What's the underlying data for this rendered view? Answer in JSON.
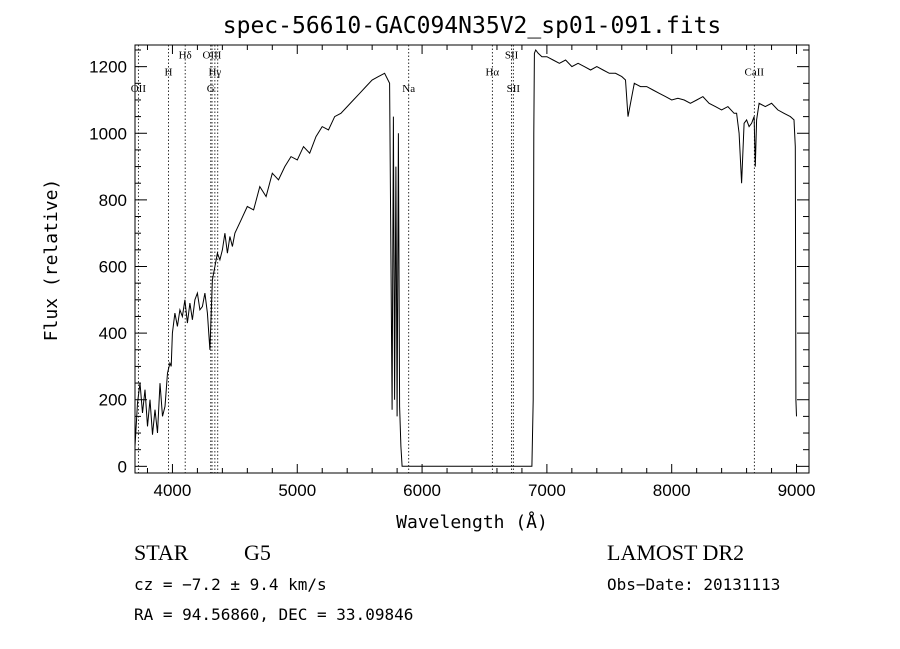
{
  "chart_data": {
    "type": "line",
    "title": "spec-56610-GAC094N35V2_sp01-091.fits",
    "xlabel": "Wavelength (Å)",
    "ylabel": "Flux (relative)",
    "xlim": [
      3700,
      9100
    ],
    "ylim": [
      -20,
      1265
    ],
    "x_ticks": [
      4000,
      5000,
      6000,
      7000,
      8000,
      9000
    ],
    "x_tick_labels": [
      "4000",
      "5000",
      "6000",
      "7000",
      "8000",
      "9000"
    ],
    "y_ticks": [
      0,
      200,
      400,
      600,
      800,
      1000,
      1200
    ],
    "y_tick_labels": [
      "0",
      "200",
      "400",
      "600",
      "800",
      "1000",
      "1200"
    ],
    "series": [
      {
        "x": [
          3700,
          3720,
          3740,
          3760,
          3780,
          3800,
          3820,
          3840,
          3860,
          3880,
          3900,
          3920,
          3940,
          3960,
          3980,
          3990,
          4000,
          4020,
          4040,
          4060,
          4080,
          4100,
          4120,
          4140,
          4160,
          4180,
          4200,
          4220,
          4240,
          4260,
          4280,
          4300,
          4320,
          4340,
          4360,
          4380,
          4400,
          4420,
          4440,
          4460,
          4480,
          4500,
          4550,
          4600,
          4650,
          4700,
          4750,
          4800,
          4850,
          4900,
          4950,
          5000,
          5050,
          5100,
          5150,
          5200,
          5250,
          5300,
          5350,
          5400,
          5450,
          5500,
          5550,
          5600,
          5650,
          5700,
          5740,
          5760,
          5770,
          5780,
          5790,
          5800,
          5810,
          5820,
          5830,
          5840,
          5850,
          6860,
          6880,
          6890,
          6895,
          6900,
          6910,
          6930,
          6960,
          7000,
          7050,
          7100,
          7150,
          7200,
          7250,
          7300,
          7350,
          7400,
          7450,
          7500,
          7550,
          7600,
          7630,
          7650,
          7700,
          7750,
          7800,
          7850,
          7900,
          7950,
          8000,
          8050,
          8100,
          8150,
          8200,
          8250,
          8300,
          8350,
          8400,
          8450,
          8500,
          8520,
          8540,
          8560,
          8580,
          8600,
          8620,
          8640,
          8660,
          8670,
          8680,
          8700,
          8750,
          8800,
          8850,
          8900,
          8950,
          8980,
          8990,
          8995,
          9000
        ],
        "y": [
          60,
          190,
          250,
          160,
          230,
          120,
          200,
          95,
          170,
          100,
          250,
          150,
          180,
          280,
          310,
          300,
          400,
          460,
          420,
          470,
          450,
          500,
          430,
          490,
          440,
          500,
          520,
          470,
          480,
          520,
          460,
          350,
          560,
          600,
          640,
          620,
          650,
          700,
          640,
          690,
          660,
          700,
          740,
          780,
          770,
          840,
          810,
          880,
          860,
          900,
          930,
          920,
          960,
          940,
          990,
          1020,
          1010,
          1050,
          1060,
          1080,
          1100,
          1120,
          1140,
          1160,
          1170,
          1180,
          1150,
          170,
          1050,
          200,
          900,
          150,
          1000,
          180,
          60,
          0,
          0,
          0,
          0,
          200,
          1000,
          1240,
          1250,
          1240,
          1230,
          1230,
          1220,
          1210,
          1220,
          1200,
          1210,
          1200,
          1190,
          1200,
          1190,
          1180,
          1180,
          1170,
          1160,
          1050,
          1150,
          1140,
          1140,
          1130,
          1120,
          1110,
          1100,
          1105,
          1100,
          1090,
          1100,
          1110,
          1090,
          1080,
          1070,
          1080,
          1060,
          1060,
          1000,
          850,
          1030,
          1040,
          1020,
          1030,
          1050,
          900,
          1040,
          1090,
          1080,
          1090,
          1070,
          1060,
          1050,
          1040,
          960,
          200,
          150
        ]
      }
    ],
    "spectral_lines": [
      {
        "label": "OII",
        "x": 3727,
        "label_y": 1124
      },
      {
        "label": "H",
        "x": 3968,
        "label_y": 1173
      },
      {
        "label": "Hδ",
        "x": 4102,
        "label_y": 1225
      },
      {
        "label": "OIII",
        "x": 4317,
        "label_y": 1225
      },
      {
        "label": "Hγ",
        "x": 4340,
        "label_y": 1173
      },
      {
        "label": "G",
        "x": 4307,
        "label_y": 1124
      },
      {
        "label": "",
        "x": 4363,
        "label_y": 1124
      },
      {
        "label": "Na",
        "x": 5893,
        "label_y": 1124
      },
      {
        "label": "Hα",
        "x": 6563,
        "label_y": 1173
      },
      {
        "label": "SII",
        "x": 6717,
        "label_y": 1225
      },
      {
        "label": "SII",
        "x": 6731,
        "label_y": 1124
      },
      {
        "label": "CaII",
        "x": 8662,
        "label_y": 1173
      }
    ]
  },
  "info": {
    "object_class": "STAR",
    "subclass": "G5",
    "survey": "LAMOST DR2",
    "cz": "cz = −7.2 ± 9.4 km/s",
    "obs_date": "Obs−Date: 20131113",
    "coords": "RA =  94.56860, DEC =  33.09846"
  }
}
